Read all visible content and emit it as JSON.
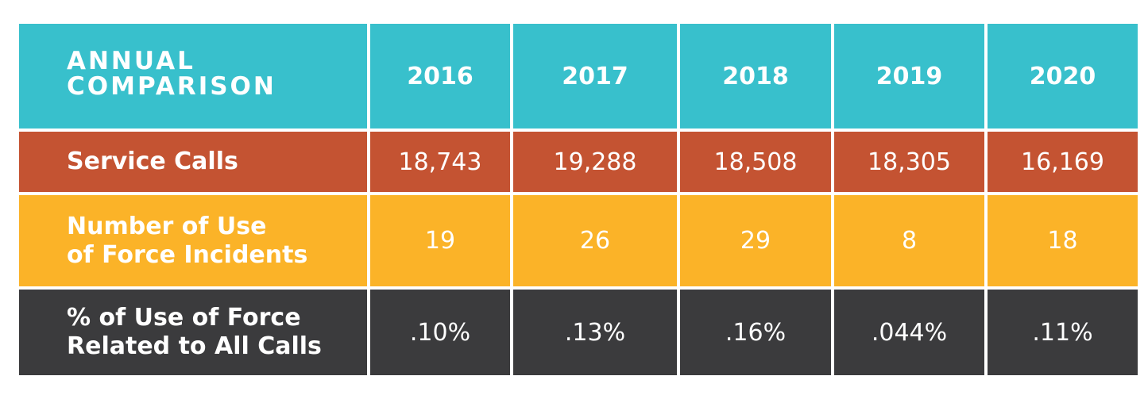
{
  "table": {
    "title": "ANNUAL\nCOMPARISON",
    "years": [
      "2016",
      "2017",
      "2018",
      "2019",
      "2020"
    ],
    "rows": [
      {
        "label": "Service Calls",
        "values": [
          "18,743",
          "19,288",
          "18,508",
          "18,305",
          "16,169"
        ]
      },
      {
        "label": "Number of Use\nof Force Incidents",
        "values": [
          "19",
          "26",
          "29",
          "8",
          "18"
        ]
      },
      {
        "label": "% of Use of Force\nRelated to All Calls",
        "values": [
          ".10%",
          ".13%",
          ".16%",
          ".044%",
          ".11%"
        ]
      }
    ]
  },
  "colors": {
    "header": "#38c0cc",
    "service_calls": "#c45332",
    "use_of_force": "#fbb328",
    "percent": "#3b3b3d"
  }
}
